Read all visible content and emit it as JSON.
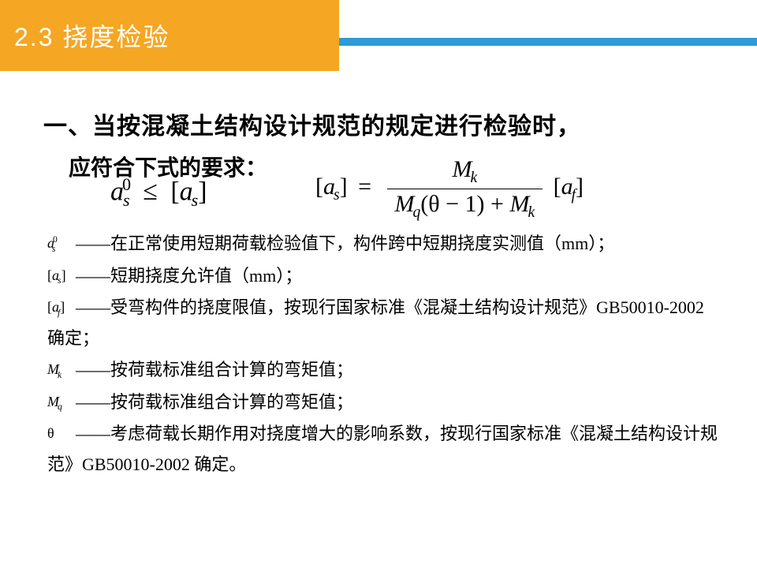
{
  "colors": {
    "header_bg": "#f5a623",
    "header_text": "#ffffff",
    "accent_line": "#2e9ad6",
    "body_text": "#000000",
    "page_bg": "#ffffff"
  },
  "header": {
    "title": "2.3 挠度检验"
  },
  "main": {
    "line1": "一、当按混凝土结构设计规范的规定进行检验时，",
    "line2": "应符合下式的要求："
  },
  "formula1": {
    "lhs_base": "a",
    "lhs_sup": "0",
    "lhs_sub": "s",
    "op": "≤",
    "rhs_base": "a",
    "rhs_sub": "s"
  },
  "formula2": {
    "lhs_base": "a",
    "lhs_sub": "s",
    "eq": "=",
    "num_base": "M",
    "num_sub": "k",
    "den_M1": "M",
    "den_M1_sub": "q",
    "den_mid": "(θ − 1) + ",
    "den_M2": "M",
    "den_M2_sub": "k",
    "tail_base": "a",
    "tail_sub": "f"
  },
  "defs": {
    "d1": {
      "sym_base": "a",
      "sym_sup": "0",
      "sym_sub": "s",
      "text": "——在正常使用短期荷载检验值下，构件跨中短期挠度实测值（mm）；"
    },
    "d2": {
      "sym_base": "a",
      "sym_sub": "s",
      "text": "——短期挠度允许值（mm）；"
    },
    "d3": {
      "sym_base": "a",
      "sym_sub": "f",
      "text": "——受弯构件的挠度限值，按现行国家标准《混凝土结构设计规范》GB50010-2002 确定；"
    },
    "d4": {
      "sym_base": "M",
      "sym_sub": "k",
      "text": "——按荷载标准组合计算的弯矩值；"
    },
    "d5": {
      "sym_base": "M",
      "sym_sub": "q",
      "text": "——按荷载标准组合计算的弯矩值；"
    },
    "d6": {
      "sym_plain": "θ",
      "text": "——考虑荷载长期作用对挠度增大的影响系数，按现行国家标准《混凝土结构设计规范》GB50010-2002 确定。"
    }
  }
}
